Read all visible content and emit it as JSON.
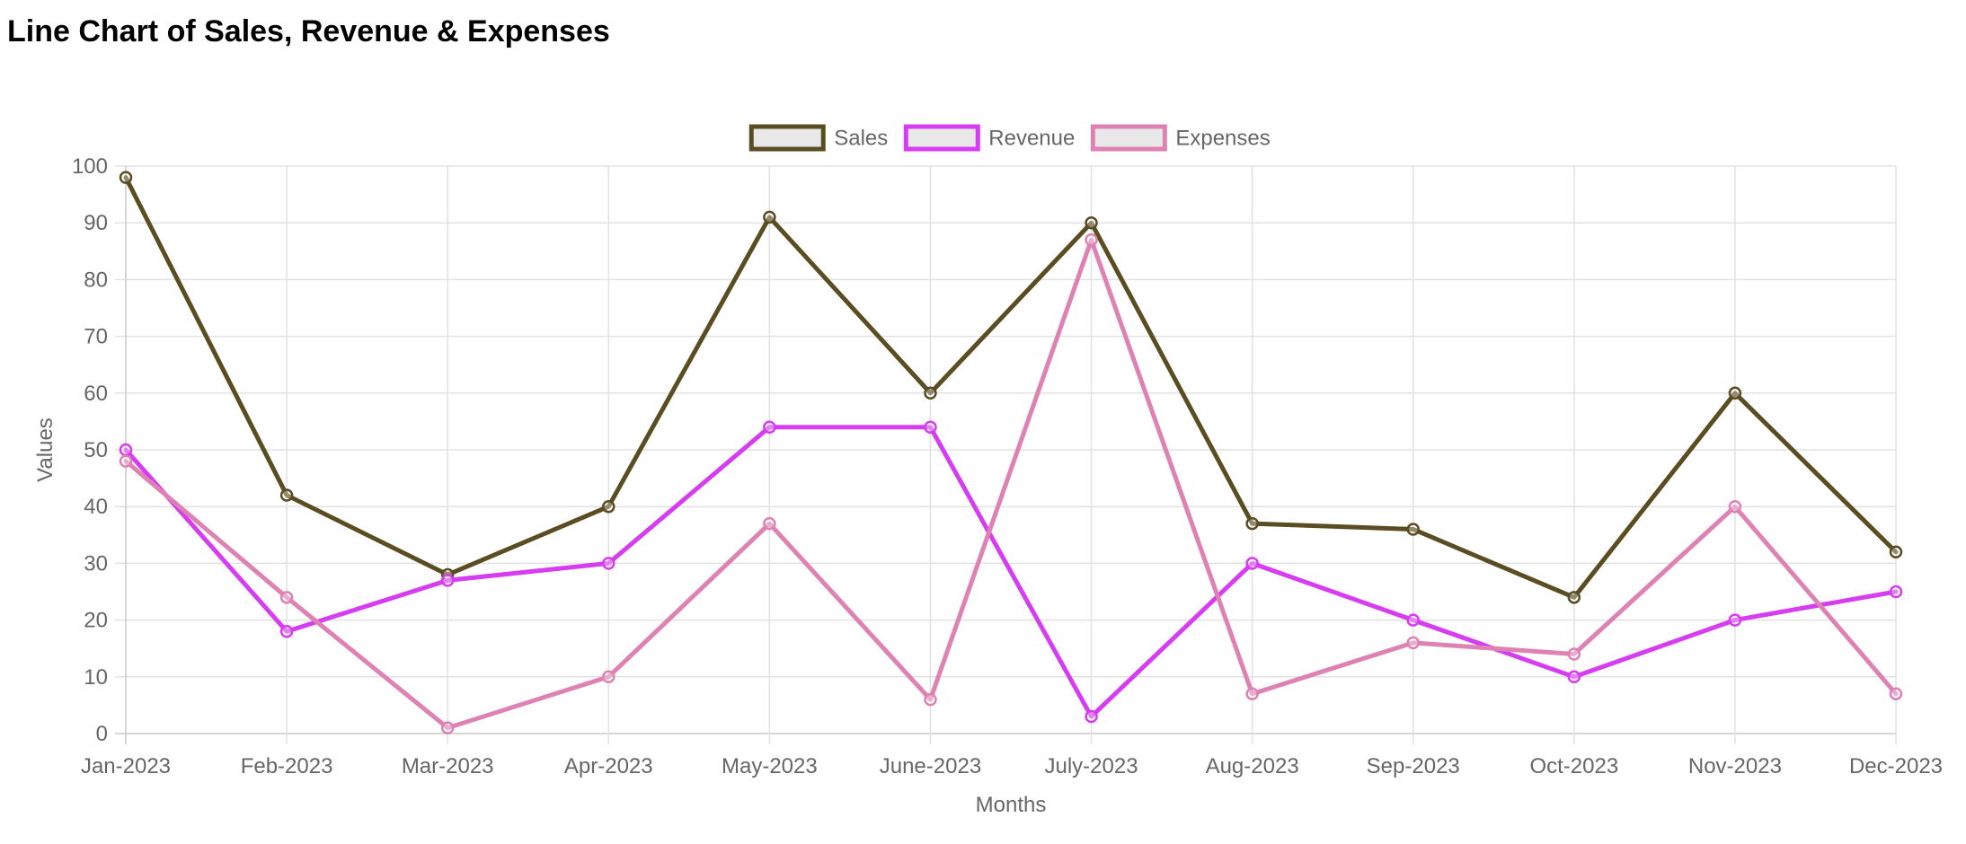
{
  "page": {
    "title": "Line Chart of Sales, Revenue & Expenses"
  },
  "chart_data": {
    "type": "line",
    "title": "Line Chart of Sales, Revenue & Expenses",
    "xlabel": "Months",
    "ylabel": "Values",
    "categories": [
      "Jan-2023",
      "Feb-2023",
      "Mar-2023",
      "Apr-2023",
      "May-2023",
      "June-2023",
      "July-2023",
      "Aug-2023",
      "Sep-2023",
      "Oct-2023",
      "Nov-2023",
      "Dec-2023"
    ],
    "ylim": [
      0,
      100
    ],
    "yticks": [
      0,
      10,
      20,
      30,
      40,
      50,
      60,
      70,
      80,
      90,
      100
    ],
    "grid": true,
    "legend_position": "top-center",
    "series": [
      {
        "name": "Sales",
        "color": "#5a4d22",
        "values": [
          98,
          42,
          28,
          40,
          91,
          60,
          90,
          37,
          36,
          24,
          60,
          32
        ]
      },
      {
        "name": "Revenue",
        "color": "#d63df0",
        "values": [
          50,
          18,
          27,
          30,
          54,
          54,
          3,
          30,
          20,
          10,
          20,
          25
        ]
      },
      {
        "name": "Expenses",
        "color": "#de82b4",
        "values": [
          48,
          24,
          1,
          10,
          37,
          6,
          87,
          7,
          16,
          14,
          40,
          7
        ]
      }
    ]
  }
}
